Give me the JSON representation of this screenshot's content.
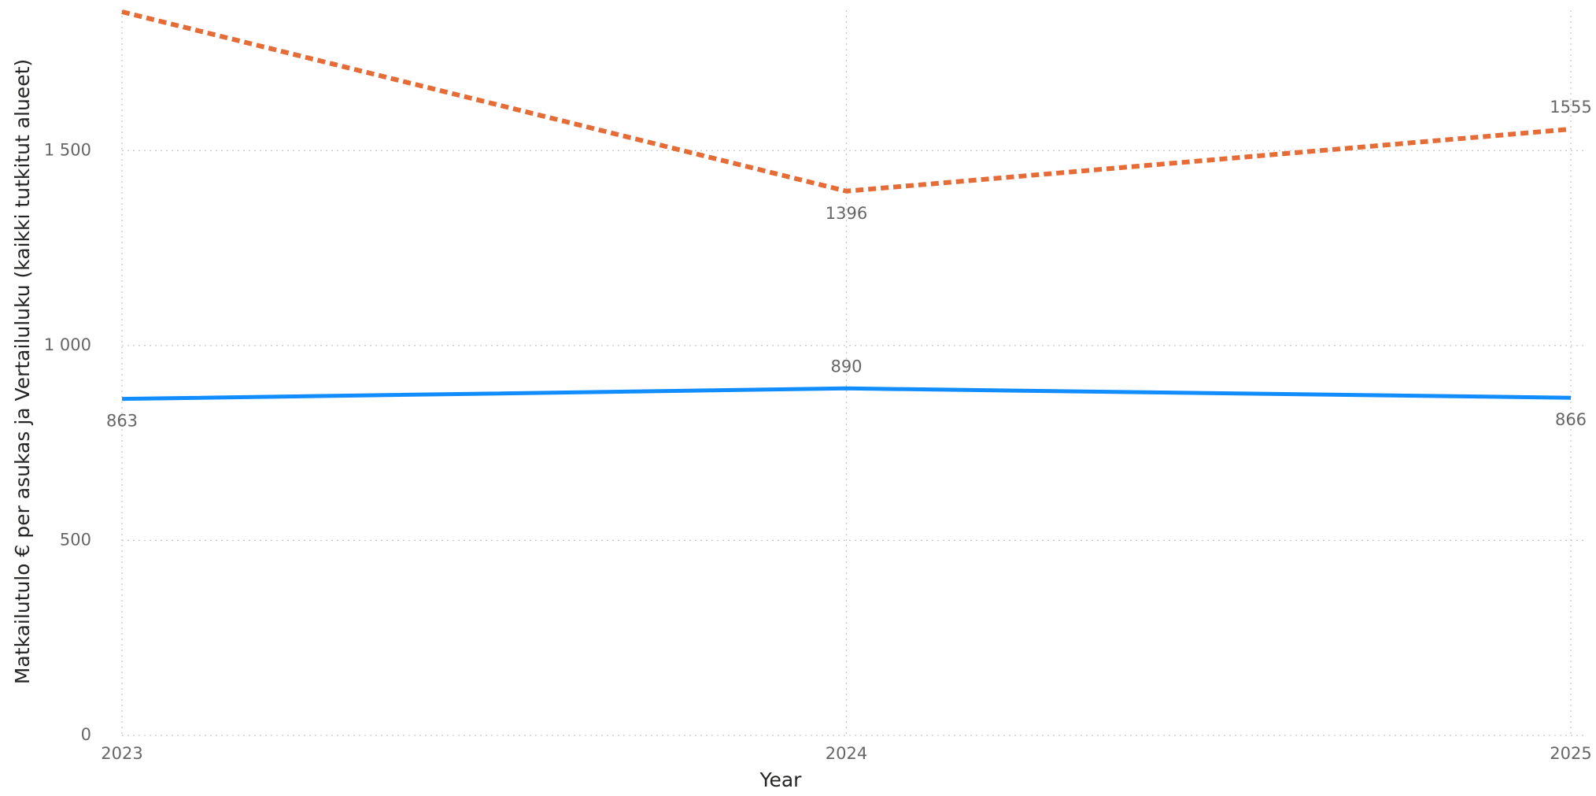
{
  "chart_data": {
    "type": "line",
    "x_label": "Year",
    "y_label": "Matkailutulo € per asukas ja Vertailuluku (kaikki tutkitut alueet)",
    "x": [
      2023,
      2024,
      2025
    ],
    "xlim": [
      2023,
      2025
    ],
    "xticks": [
      2023,
      2024,
      2025
    ],
    "ylim": [
      0,
      1860
    ],
    "yticks": [
      0,
      500,
      {
        "value": 1000,
        "label": "1 000"
      },
      {
        "value": 1500,
        "label": "1 500"
      }
    ],
    "grid": true,
    "series": [
      {
        "color": "#118DFF",
        "dash": "solid",
        "values": [
          863,
          890,
          866
        ]
      },
      {
        "color": "#E66C37",
        "dash": "dashed",
        "values": [
          1856,
          1396,
          1555
        ]
      }
    ]
  }
}
